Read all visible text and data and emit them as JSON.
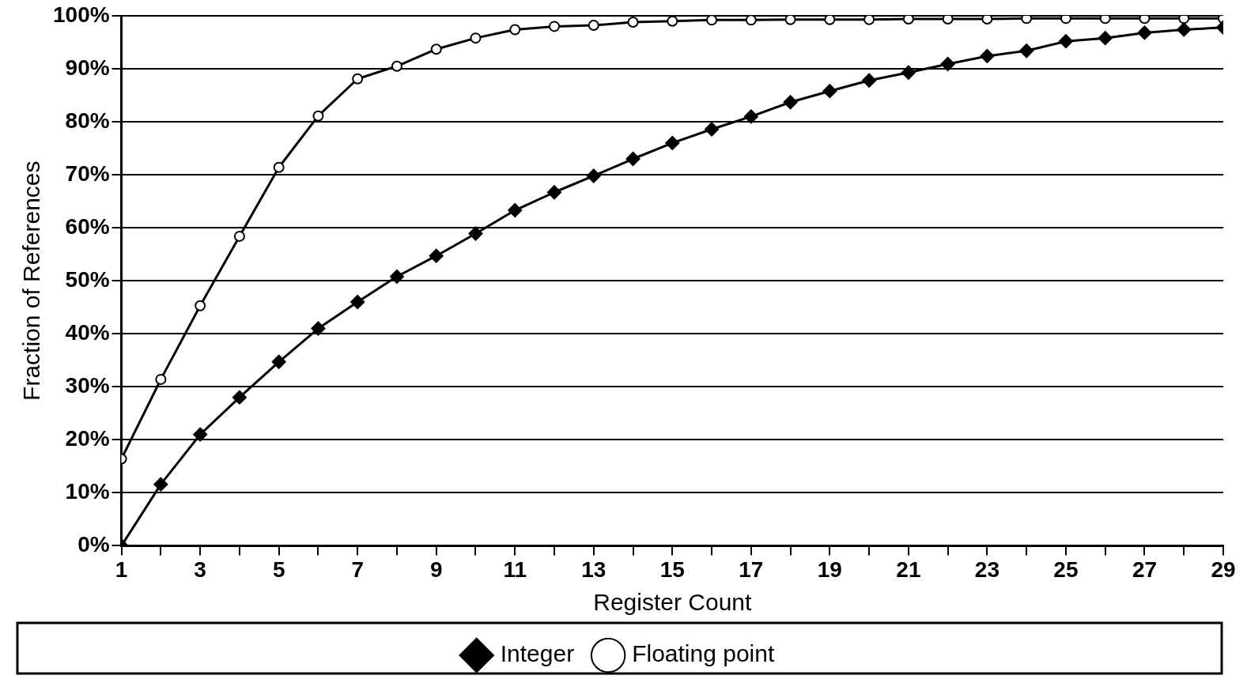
{
  "chart_data": {
    "type": "line",
    "xlabel": "Register Count",
    "ylabel": "Fraction of References",
    "x": [
      1,
      2,
      3,
      4,
      5,
      6,
      7,
      8,
      9,
      10,
      11,
      12,
      13,
      14,
      15,
      16,
      17,
      18,
      19,
      20,
      21,
      22,
      23,
      24,
      25,
      26,
      27,
      28,
      29
    ],
    "series": [
      {
        "name": "Integer",
        "color": "#000000",
        "marker": "diamond",
        "values": [
          0,
          11.6,
          21,
          28,
          34.7,
          41,
          46,
          50.8,
          54.7,
          58.9,
          63.3,
          66.7,
          69.8,
          73,
          76,
          78.6,
          81,
          83.7,
          85.8,
          87.8,
          89.3,
          90.9,
          92.4,
          93.4,
          95.2,
          95.8,
          96.8,
          97.4,
          97.8
        ]
      },
      {
        "name": "Floating point",
        "color": "#000000",
        "marker": "circle",
        "values": [
          16.4,
          31.4,
          45.3,
          58.4,
          71.4,
          81.1,
          88.1,
          90.5,
          93.7,
          95.8,
          97.4,
          98,
          98.2,
          98.8,
          99,
          99.2,
          99.2,
          99.3,
          99.3,
          99.3,
          99.4,
          99.4,
          99.4,
          99.5,
          99.5,
          99.5,
          99.5,
          99.5,
          99.5
        ]
      }
    ],
    "xlim": [
      1,
      29
    ],
    "xticks": [
      1,
      {
        "value": 2,
        "label": null
      },
      3,
      {
        "value": 4,
        "label": null
      },
      5,
      {
        "value": 6,
        "label": null
      },
      7,
      {
        "value": 8,
        "label": null
      },
      9,
      {
        "value": 10,
        "label": null
      },
      11,
      {
        "value": 12,
        "label": null
      },
      13,
      {
        "value": 14,
        "label": null
      },
      15,
      {
        "value": 16,
        "label": null
      },
      17,
      {
        "value": 18,
        "label": null
      },
      19,
      {
        "value": 20,
        "label": null
      },
      21,
      {
        "value": 22,
        "label": null
      },
      23,
      {
        "value": 24,
        "label": null
      },
      25,
      {
        "value": 26,
        "label": null
      },
      27,
      {
        "value": 28,
        "label": null
      },
      29
    ],
    "ylim": [
      0,
      100
    ],
    "yticks": [
      {
        "value": 0,
        "label": "0%"
      },
      {
        "value": 10,
        "label": "10%"
      },
      {
        "value": 20,
        "label": "20%"
      },
      {
        "value": 30,
        "label": "30%"
      },
      {
        "value": 40,
        "label": "40%"
      },
      {
        "value": 50,
        "label": "50%"
      },
      {
        "value": 60,
        "label": "60%"
      },
      {
        "value": 70,
        "label": "70%"
      },
      {
        "value": 80,
        "label": "80%"
      },
      {
        "value": 90,
        "label": "90%"
      },
      {
        "value": 100,
        "label": "100%"
      }
    ],
    "grid": "y",
    "legend": "bottom",
    "line_style": "solid"
  }
}
